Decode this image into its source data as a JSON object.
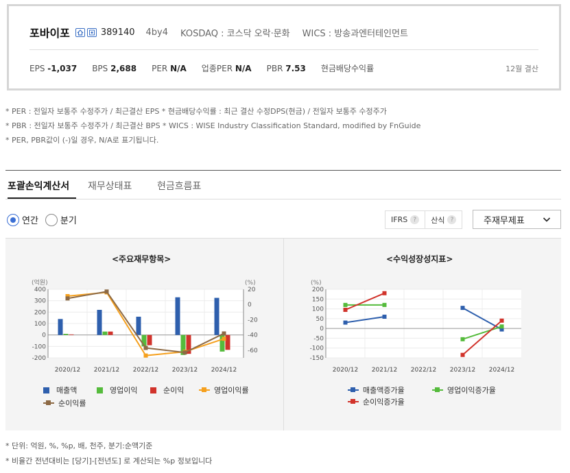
{
  "company": {
    "name": "포바이포",
    "code": "389140",
    "ticker": "4by4",
    "market": "KOSDAQ : 코스닥 오락·문화",
    "wics": "WICS : 방송과엔터테인먼트",
    "fiscal": "12월 결산"
  },
  "metrics": [
    {
      "label": "EPS",
      "value": "-1,037"
    },
    {
      "label": "BPS",
      "value": "2,688"
    },
    {
      "label": "PER",
      "value": "N/A"
    },
    {
      "label": "업종PER",
      "value": "N/A"
    },
    {
      "label": "PBR",
      "value": "7.53"
    },
    {
      "label": "현금배당수익률",
      "value": ""
    }
  ],
  "notes": [
    "* PER : 전일자 보통주 수정주가 / 최근결산 EPS * 현금배당수익률 : 최근 결산 수정DPS(현금) / 전일자 보통주 수정주가",
    "* PBR : 전일자 보통주 수정주가 / 최근결산 BPS * WICS : WISE Industry Classification Standard, modified by FnGuide",
    "* PER, PBR값이 (-)일 경우, N/A로 표기됩니다."
  ],
  "tabs": [
    "포괄손익계산서",
    "재무상태표",
    "현금흐름표"
  ],
  "period": {
    "annual": "연간",
    "quarter": "분기"
  },
  "controls": {
    "ifrs": "IFRS",
    "method": "산식",
    "question": "?",
    "dropdown": "주재무제표"
  },
  "colors": {
    "blue": "#2e5fad",
    "green": "#55bb3c",
    "red": "#d1332b",
    "orange": "#f5a01e",
    "brown": "#8d6a45"
  },
  "footnotes": [
    "* 단위: 억원, %, %p, 배, 천주, 분기:순액기준",
    "* 비율간 전년대비는 [당기]-[전년도] 로 계산되는 %p 정보입니다"
  ],
  "chart_data": [
    {
      "type": "bar",
      "title": "<주요재무항목>",
      "ylabel_left": "(억원)",
      "ylabel_right": "(%)",
      "categories": [
        "2020/12",
        "2021/12",
        "2022/12",
        "2023/12",
        "2024/12"
      ],
      "ylim_left": [
        -200,
        400
      ],
      "ylim_right": [
        -70,
        20
      ],
      "yticks_left": [
        "400",
        "300",
        "200",
        "100",
        "0",
        "-100",
        "-200"
      ],
      "yticks_right": [
        "20",
        "0",
        "-20",
        "-40",
        "-60"
      ],
      "grid": true,
      "series": [
        {
          "name": "매출액",
          "kind": "bar",
          "axis": "left",
          "color": "#2e5fad",
          "values": [
            140,
            220,
            160,
            330,
            325
          ]
        },
        {
          "name": "영업이익",
          "kind": "bar",
          "axis": "left",
          "color": "#55bb3c",
          "values": [
            10,
            30,
            -100,
            -175,
            -145
          ]
        },
        {
          "name": "순이익",
          "kind": "bar",
          "axis": "left",
          "color": "#d1332b",
          "values": [
            5,
            30,
            -90,
            -165,
            -130
          ]
        },
        {
          "name": "영업이익률",
          "kind": "line",
          "axis": "right",
          "color": "#f5a01e",
          "values": [
            11,
            16,
            -67,
            -62,
            -45
          ]
        },
        {
          "name": "순이익률",
          "kind": "line",
          "axis": "right",
          "color": "#8d6a45",
          "values": [
            8,
            17,
            -57,
            -63,
            -38
          ]
        }
      ],
      "legend": "bottom"
    },
    {
      "type": "line",
      "title": "<수익성장성지표>",
      "ylabel": "(%)",
      "categories": [
        "2020/12",
        "2021/12",
        "2022/12",
        "2023/12",
        "2024/12"
      ],
      "ylim": [
        -150,
        200
      ],
      "yticks": [
        "200",
        "150",
        "100",
        "50",
        "0",
        "-50",
        "-100",
        "-150"
      ],
      "grid": true,
      "series": [
        {
          "name": "매출액증가율",
          "color": "#2e5fad",
          "values": [
            30,
            60,
            null,
            105,
            -5
          ]
        },
        {
          "name": "영업이익증가율",
          "color": "#55bb3c",
          "values": [
            120,
            120,
            null,
            -55,
            10
          ]
        },
        {
          "name": "순이익증가율",
          "color": "#d1332b",
          "values": [
            95,
            180,
            null,
            -135,
            40
          ]
        }
      ],
      "legend": "bottom"
    }
  ]
}
